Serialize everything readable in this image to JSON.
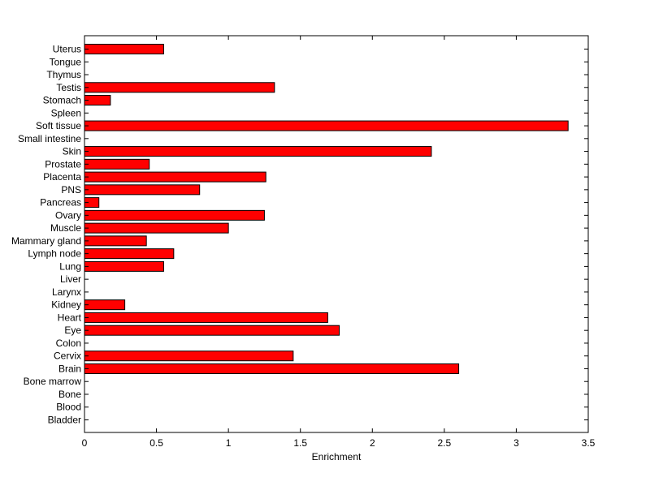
{
  "chart_data": {
    "type": "bar",
    "orientation": "horizontal",
    "title": "",
    "xlabel": "Enrichment",
    "ylabel": "",
    "xlim": [
      0,
      3.5
    ],
    "x_ticks": [
      "0",
      "0.5",
      "1",
      "1.5",
      "2",
      "2.5",
      "3",
      "3.5"
    ],
    "grid": false,
    "bar_color": "#ff0000",
    "bar_edge_color": "#000000",
    "categories": [
      "Uterus",
      "Tongue",
      "Thymus",
      "Testis",
      "Stomach",
      "Spleen",
      "Soft tissue",
      "Small intestine",
      "Skin",
      "Prostate",
      "Placenta",
      "PNS",
      "Pancreas",
      "Ovary",
      "Muscle",
      "Mammary gland",
      "Lymph node",
      "Lung",
      "Liver",
      "Larynx",
      "Kidney",
      "Heart",
      "Eye",
      "Colon",
      "Cervix",
      "Brain",
      "Bone marrow",
      "Bone",
      "Blood",
      "Bladder"
    ],
    "values": [
      0.55,
      0,
      0,
      1.32,
      0.18,
      0,
      3.36,
      0,
      2.41,
      0.45,
      1.26,
      0.8,
      0.1,
      1.25,
      1.0,
      0.43,
      0.62,
      0.55,
      0,
      0,
      0.28,
      1.69,
      1.77,
      0,
      1.45,
      2.6,
      0,
      0,
      0,
      0
    ]
  }
}
